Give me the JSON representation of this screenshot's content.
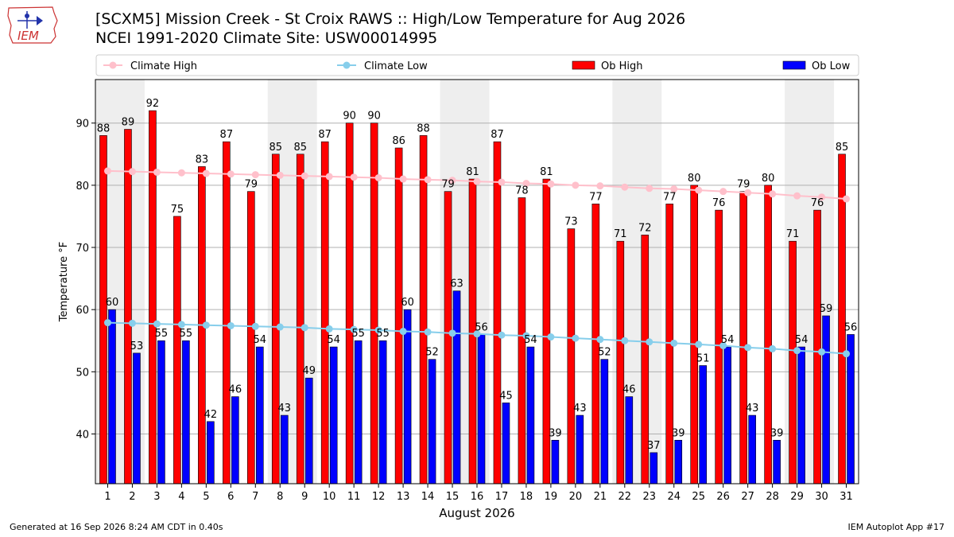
{
  "header": {
    "title_line1": "[SCXM5] Mission Creek - St Croix RAWS :: High/Low Temperature for Aug 2026",
    "title_line2": "NCEI 1991-2020 Climate Site: USW00014995",
    "logo_text": "IEM"
  },
  "footer": {
    "generated": "Generated at 16 Sep 2026 8:24 AM CDT in 0.40s",
    "app": "IEM Autoplot App #17"
  },
  "colors": {
    "ob_high": "#ff0000",
    "ob_low": "#0000ff",
    "climate_high": "#ffc0cb",
    "climate_low": "#87ceeb",
    "weekend_shade": "#eeeeee",
    "grid": "#b0b0b0"
  },
  "chart_data": {
    "type": "bar",
    "xlabel": "August 2026",
    "ylabel": "Temperature °F",
    "ylim": [
      32,
      97
    ],
    "yticks": [
      40,
      50,
      60,
      70,
      80,
      90
    ],
    "grid": true,
    "legend_placement": "top",
    "categories": [
      1,
      2,
      3,
      4,
      5,
      6,
      7,
      8,
      9,
      10,
      11,
      12,
      13,
      14,
      15,
      16,
      17,
      18,
      19,
      20,
      21,
      22,
      23,
      24,
      25,
      26,
      27,
      28,
      29,
      30,
      31
    ],
    "shaded_days": [
      [
        1,
        2
      ],
      [
        8,
        9
      ],
      [
        15,
        16
      ],
      [
        22,
        23
      ],
      [
        29,
        30
      ]
    ],
    "series": [
      {
        "name": "Ob High",
        "kind": "bar",
        "color": "#ff0000",
        "values": [
          88,
          89,
          92,
          75,
          83,
          87,
          79,
          85,
          85,
          87,
          90,
          90,
          86,
          88,
          79,
          81,
          87,
          78,
          81,
          73,
          77,
          71,
          72,
          77,
          80,
          76,
          79,
          80,
          71,
          76,
          85
        ]
      },
      {
        "name": "Ob Low",
        "kind": "bar",
        "color": "#0000ff",
        "values": [
          60,
          53,
          55,
          55,
          42,
          46,
          54,
          43,
          49,
          54,
          55,
          55,
          60,
          52,
          63,
          56,
          45,
          54,
          39,
          43,
          52,
          46,
          37,
          39,
          51,
          54,
          43,
          39,
          54,
          59,
          56
        ]
      },
      {
        "name": "Climate High",
        "kind": "line",
        "color": "#ffc0cb",
        "values": [
          82.3,
          82.2,
          82.1,
          82.0,
          81.9,
          81.8,
          81.7,
          81.6,
          81.5,
          81.4,
          81.3,
          81.2,
          81.0,
          80.9,
          80.8,
          80.6,
          80.5,
          80.3,
          80.2,
          80.0,
          79.9,
          79.7,
          79.5,
          79.4,
          79.2,
          79.0,
          78.8,
          78.6,
          78.3,
          78.1,
          77.8
        ]
      },
      {
        "name": "Climate Low",
        "kind": "line",
        "color": "#87ceeb",
        "values": [
          57.9,
          57.8,
          57.7,
          57.6,
          57.5,
          57.4,
          57.3,
          57.2,
          57.1,
          56.9,
          56.8,
          56.7,
          56.5,
          56.4,
          56.2,
          56.1,
          55.9,
          55.8,
          55.6,
          55.4,
          55.2,
          55.0,
          54.8,
          54.6,
          54.4,
          54.2,
          53.9,
          53.7,
          53.4,
          53.2,
          52.9
        ]
      }
    ]
  }
}
